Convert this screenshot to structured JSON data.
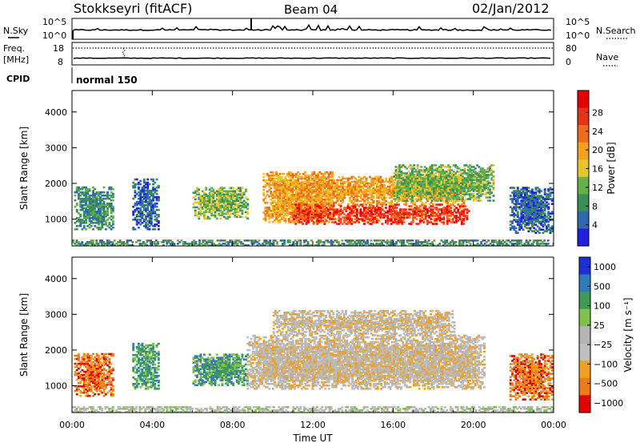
{
  "header": {
    "title": "Stokkseyri (fitACF)",
    "beam": "Beam 04",
    "date": "02/Jan/2012"
  },
  "top_panels": {
    "nsky_label": "N.Sky",
    "nsky_ticks": [
      "10^5",
      "10^0"
    ],
    "nsearch_label": "N.Search",
    "nsearch_ticks": [
      "10^5",
      "10^0"
    ],
    "freq_label": "Freq.",
    "freq_unit": "[MHz]",
    "freq_ticks": [
      "18",
      "8"
    ],
    "nave_label": "Nave",
    "nave_ticks": [
      "80",
      "0"
    ],
    "cpid_label": "CPID",
    "cpid_value": "normal 150"
  },
  "colors": {
    "power_scale": [
      "#2020e0",
      "#2f6ab0",
      "#3a8f55",
      "#62b14b",
      "#e8c52a",
      "#f0a21f",
      "#ef6a1a",
      "#e63218",
      "#e60000"
    ],
    "velocity_scale": [
      "#e60000",
      "#f07a18",
      "#f0a020",
      "#bebebe",
      "#b4b4b4",
      "#7fc14a",
      "#3e9a55",
      "#2f7ab8",
      "#1f2fd8"
    ],
    "ground_scatter": "#bebebe"
  },
  "chart_data": [
    {
      "type": "heatmap",
      "name": "Power",
      "ylabel": "Slant Range [km]",
      "y_ticks": [
        "1000",
        "2000",
        "3000",
        "4000"
      ],
      "x_ticks": [
        "00:00",
        "04:00",
        "08:00",
        "12:00",
        "16:00",
        "20:00",
        "00:00"
      ],
      "xlim": [
        0,
        24
      ],
      "ylim": [
        250,
        4600
      ],
      "colorbar_label": "Power [dB]",
      "colorbar_ticks": [
        "4",
        "8",
        "12",
        "16",
        "20",
        "24",
        "28"
      ],
      "regions": [
        {
          "t0": 0.1,
          "t1": 2.0,
          "r0": 700,
          "r1": 1900,
          "level": 2
        },
        {
          "t0": 3.0,
          "t1": 4.3,
          "r0": 700,
          "r1": 2100,
          "level": 1
        },
        {
          "t0": 6.0,
          "t1": 8.7,
          "r0": 1000,
          "r1": 1900,
          "level": 3
        },
        {
          "t0": 9.5,
          "t1": 13.0,
          "r0": 900,
          "r1": 2300,
          "level": 5
        },
        {
          "t0": 11.0,
          "t1": 19.8,
          "r0": 850,
          "r1": 1400,
          "level": 7
        },
        {
          "t0": 12.0,
          "t1": 19.5,
          "r0": 1400,
          "r1": 2200,
          "level": 5
        },
        {
          "t0": 16.0,
          "t1": 21.0,
          "r0": 1500,
          "r1": 2500,
          "level": 3
        },
        {
          "t0": 21.8,
          "t1": 23.9,
          "r0": 600,
          "r1": 1900,
          "level": 1
        },
        {
          "t0": 0.0,
          "t1": 24.0,
          "r0": 250,
          "r1": 420,
          "level": 2
        }
      ]
    },
    {
      "type": "heatmap",
      "name": "Velocity",
      "ylabel": "Slant Range [km]",
      "y_ticks": [
        "1000",
        "2000",
        "3000",
        "4000"
      ],
      "x_ticks": [
        "00:00",
        "04:00",
        "08:00",
        "12:00",
        "16:00",
        "20:00",
        "00:00"
      ],
      "xlabel": "Time UT",
      "xlim": [
        0,
        24
      ],
      "ylim": [
        250,
        4600
      ],
      "colorbar_label": "Velocity [m s⁻¹]",
      "colorbar_ticks": [
        "1000",
        "500",
        "100",
        "25",
        "−25",
        "−100",
        "−500",
        "−1000"
      ],
      "regions": [
        {
          "t0": 0.1,
          "t1": 2.0,
          "r0": 700,
          "r1": 1900,
          "level": 1
        },
        {
          "t0": 3.0,
          "t1": 4.3,
          "r0": 900,
          "r1": 2200,
          "level": 6
        },
        {
          "t0": 6.0,
          "t1": 8.7,
          "r0": 1000,
          "r1": 1900,
          "level": 6
        },
        {
          "t0": 8.7,
          "t1": 20.5,
          "r0": 900,
          "r1": 2400,
          "level": 3
        },
        {
          "t0": 10.0,
          "t1": 19.0,
          "r0": 2400,
          "r1": 3100,
          "level": 3
        },
        {
          "t0": 21.8,
          "t1": 23.9,
          "r0": 600,
          "r1": 1900,
          "level": 1
        },
        {
          "t0": 0.0,
          "t1": 24.0,
          "r0": 250,
          "r1": 420,
          "level": 4
        }
      ]
    }
  ]
}
